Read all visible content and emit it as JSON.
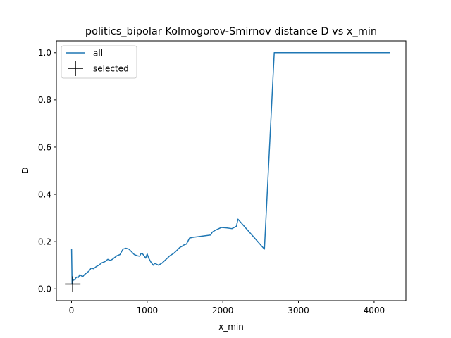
{
  "chart_data": {
    "type": "line",
    "title": "politics_bipolar Kolmogorov-Smirnov distance D vs x_min",
    "xlabel": "x_min",
    "ylabel": "D",
    "xlim": [
      -200,
      4420
    ],
    "ylim": [
      -0.05,
      1.05
    ],
    "xticks": [
      0,
      1000,
      2000,
      3000,
      4000
    ],
    "yticks": [
      0.0,
      0.2,
      0.4,
      0.6,
      0.8,
      1.0
    ],
    "ytick_labels": [
      "0.0",
      "0.2",
      "0.4",
      "0.6",
      "0.8",
      "1.0"
    ],
    "grid": false,
    "legend_placement": "upper left",
    "series": [
      {
        "name": "all",
        "color": "#1f77b4",
        "style": "line",
        "x": [
          1,
          8,
          15,
          22,
          30,
          40,
          55,
          70,
          90,
          110,
          130,
          150,
          170,
          190,
          210,
          230,
          260,
          290,
          310,
          330,
          360,
          400,
          440,
          480,
          510,
          540,
          560,
          600,
          640,
          680,
          700,
          720,
          740,
          760,
          800,
          830,
          870,
          900,
          920,
          940,
          980,
          1000,
          1020,
          1050,
          1080,
          1100,
          1150,
          1200,
          1250,
          1300,
          1350,
          1400,
          1430,
          1460,
          1480,
          1520,
          1560,
          1600,
          1700,
          1840,
          1860,
          1900,
          1980,
          2050,
          2120,
          2180,
          2200,
          2550,
          2680,
          4210
        ],
        "y": [
          0.17,
          0.02,
          0.045,
          0.035,
          0.04,
          0.038,
          0.045,
          0.05,
          0.048,
          0.06,
          0.055,
          0.052,
          0.06,
          0.065,
          0.07,
          0.075,
          0.088,
          0.085,
          0.09,
          0.095,
          0.1,
          0.11,
          0.115,
          0.125,
          0.12,
          0.125,
          0.13,
          0.14,
          0.145,
          0.168,
          0.17,
          0.172,
          0.17,
          0.168,
          0.155,
          0.145,
          0.14,
          0.138,
          0.15,
          0.148,
          0.13,
          0.148,
          0.13,
          0.113,
          0.1,
          0.108,
          0.1,
          0.11,
          0.125,
          0.14,
          0.15,
          0.165,
          0.175,
          0.18,
          0.185,
          0.19,
          0.215,
          0.218,
          0.222,
          0.228,
          0.24,
          0.248,
          0.26,
          0.258,
          0.255,
          0.265,
          0.295,
          0.168,
          1.0,
          1.0
        ]
      },
      {
        "name": "selected",
        "color": "#000000",
        "style": "marker",
        "marker": "+",
        "x": [
          16
        ],
        "y": [
          0.02
        ]
      }
    ]
  }
}
